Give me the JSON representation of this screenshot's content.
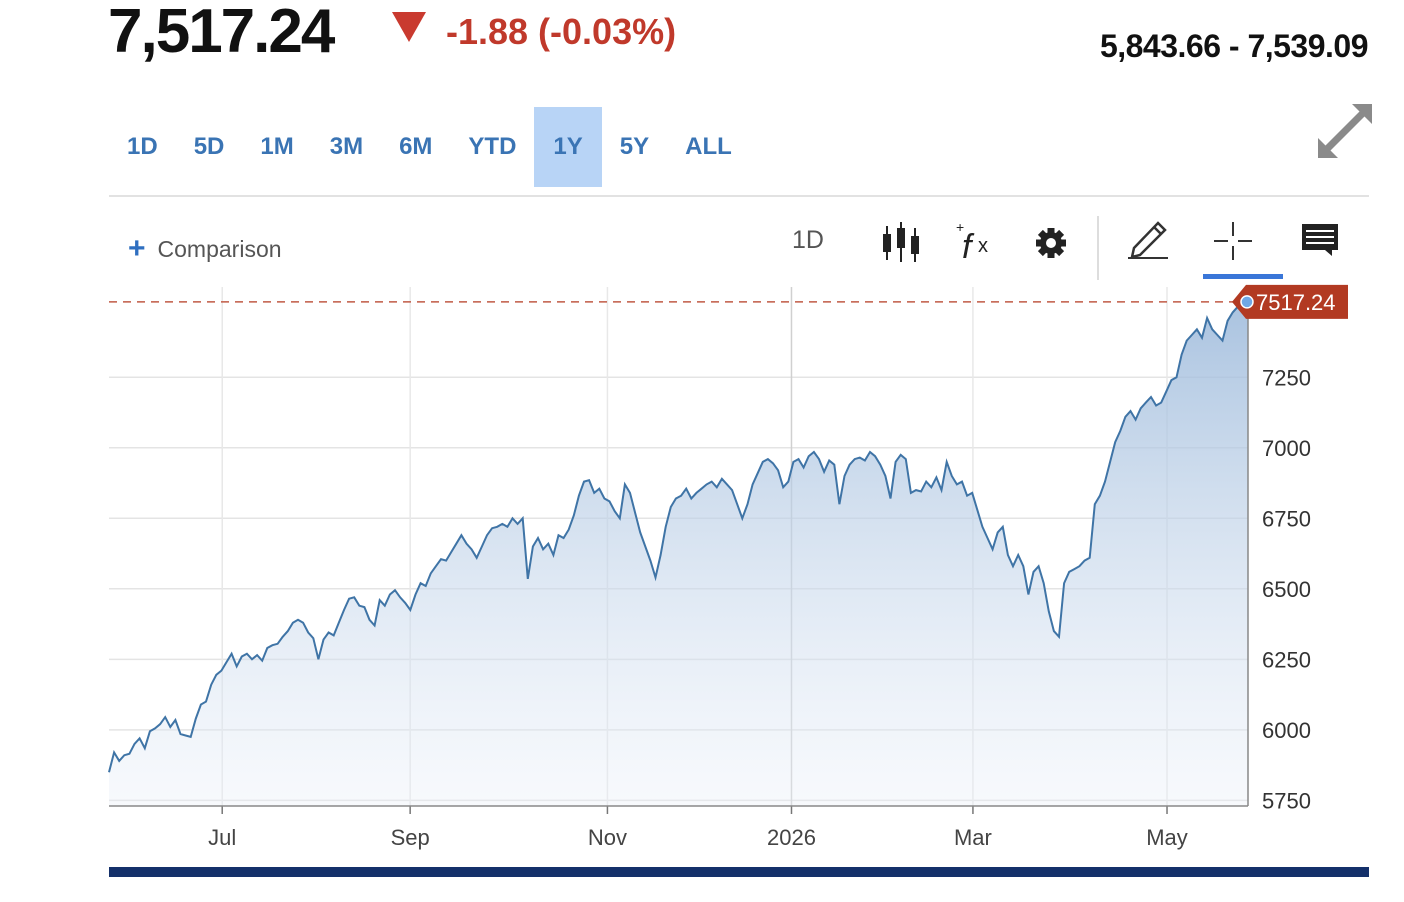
{
  "quote": {
    "price": "7,517.24",
    "change": "-1.88 (-0.03%)",
    "range": "5,843.66 - 7,539.09",
    "change_color": "#c0392b"
  },
  "tabs": [
    "1D",
    "5D",
    "1M",
    "3M",
    "6M",
    "YTD",
    "1Y",
    "5Y",
    "ALL"
  ],
  "active_tab": "1Y",
  "toolbar": {
    "comparison_label": "Comparison",
    "interval_label": "1D",
    "icons": [
      "candlestick-icon",
      "function-icon",
      "gear-icon",
      "pencil-icon",
      "crosshair-icon",
      "comment-icon"
    ],
    "active_tool": "crosshair-icon"
  },
  "colors": {
    "accent": "#3a74b4",
    "line": "#3f74a6",
    "last_price_flag": "#b23a22",
    "bottom_bar": "#14306a"
  },
  "chart_data": {
    "type": "area",
    "xlabel": "",
    "ylabel": "",
    "x_ticks": [
      "Jul",
      "Sep",
      "Nov",
      "2026",
      "Mar",
      "May"
    ],
    "y_ticks": [
      5750,
      6000,
      6250,
      6500,
      6750,
      7000,
      7250
    ],
    "ylim": [
      5730,
      7570
    ],
    "last_price_label": "7517.24",
    "last_price": 7517.24,
    "grid": true,
    "series": [
      {
        "values": [
          5850,
          5920,
          5890,
          5910,
          5915,
          5950,
          5970,
          5935,
          5995,
          6005,
          6020,
          6045,
          6010,
          6035,
          5985,
          5980,
          5975,
          6040,
          6090,
          6100,
          6160,
          6195,
          6210,
          6240,
          6270,
          6225,
          6260,
          6270,
          6250,
          6265,
          6245,
          6290,
          6300,
          6305,
          6330,
          6350,
          6380,
          6390,
          6380,
          6345,
          6325,
          6250,
          6320,
          6345,
          6335,
          6380,
          6425,
          6465,
          6470,
          6440,
          6435,
          6390,
          6370,
          6460,
          6440,
          6480,
          6495,
          6470,
          6450,
          6425,
          6480,
          6520,
          6510,
          6555,
          6580,
          6605,
          6600,
          6630,
          6660,
          6690,
          6660,
          6640,
          6610,
          6650,
          6690,
          6715,
          6720,
          6730,
          6720,
          6750,
          6730,
          6750,
          6535,
          6650,
          6680,
          6640,
          6660,
          6620,
          6690,
          6680,
          6710,
          6760,
          6830,
          6880,
          6885,
          6840,
          6855,
          6820,
          6810,
          6775,
          6750,
          6870,
          6840,
          6770,
          6700,
          6650,
          6600,
          6540,
          6620,
          6720,
          6790,
          6820,
          6830,
          6855,
          6820,
          6840,
          6855,
          6870,
          6880,
          6860,
          6890,
          6870,
          6850,
          6800,
          6750,
          6800,
          6870,
          6910,
          6950,
          6960,
          6945,
          6920,
          6860,
          6880,
          6950,
          6960,
          6930,
          6970,
          6985,
          6960,
          6915,
          6955,
          6940,
          6800,
          6900,
          6940,
          6960,
          6965,
          6955,
          6985,
          6970,
          6940,
          6900,
          6820,
          6950,
          6975,
          6960,
          6840,
          6850,
          6845,
          6880,
          6860,
          6895,
          6850,
          6950,
          6900,
          6870,
          6880,
          6830,
          6840,
          6780,
          6720,
          6680,
          6640,
          6700,
          6720,
          6620,
          6580,
          6620,
          6580,
          6480,
          6560,
          6580,
          6520,
          6420,
          6350,
          6330,
          6520,
          6560,
          6570,
          6580,
          6600,
          6610,
          6800,
          6830,
          6880,
          6950,
          7020,
          7060,
          7110,
          7130,
          7100,
          7140,
          7160,
          7180,
          7150,
          7160,
          7200,
          7240,
          7250,
          7330,
          7380,
          7400,
          7420,
          7390,
          7460,
          7420,
          7400,
          7380,
          7450,
          7480,
          7500,
          7520,
          7517.24
        ]
      }
    ]
  }
}
